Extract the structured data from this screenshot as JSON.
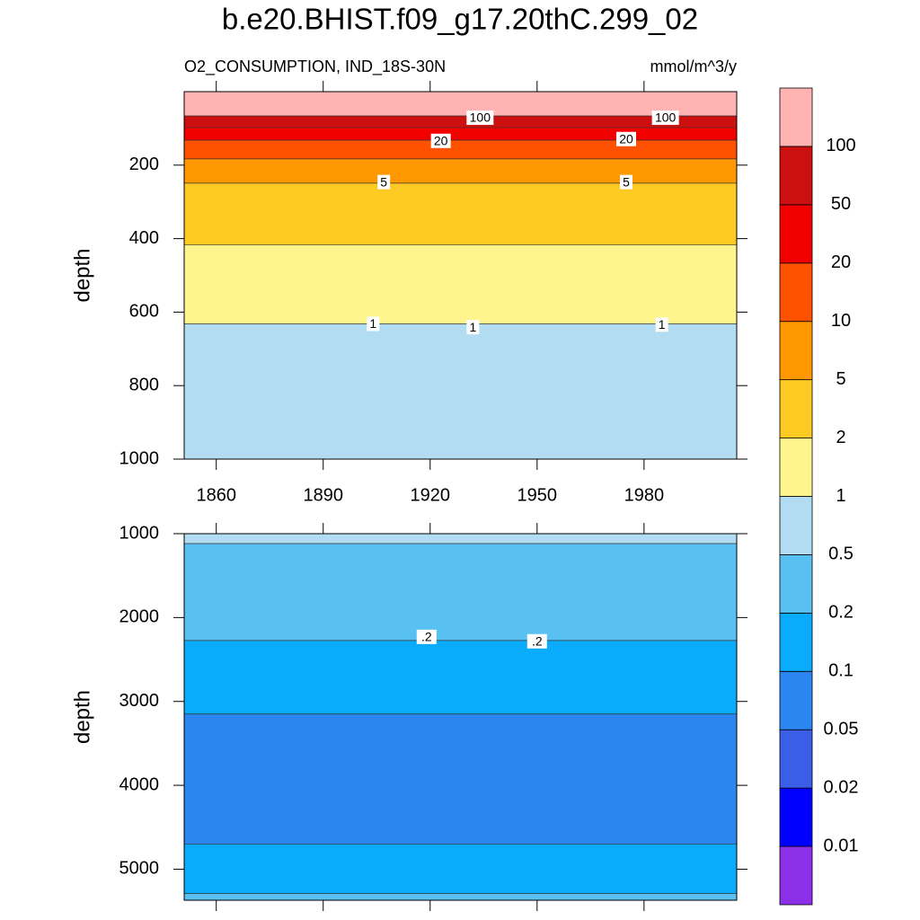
{
  "chart_data": {
    "type": "contour",
    "title": "b.e20.BHIST.f09_g17.20thC.299_02",
    "left_string": "O2_CONSUMPTION, IND_18S-30N",
    "right_string": "mmol/m^3/y",
    "xlim": [
      1851,
      2006
    ],
    "xticks": [
      1860,
      1890,
      1920,
      1950,
      1980
    ],
    "levels": [
      0.01,
      0.02,
      0.05,
      0.1,
      0.2,
      0.5,
      1,
      2,
      5,
      10,
      20,
      50,
      100
    ],
    "colors": [
      "#8b2fe8",
      "#0000ff",
      "#3b5ee6",
      "#2b86f2",
      "#0aabfa",
      "#58c1f2",
      "#b2dcf2",
      "#fff58f",
      "#fdc923",
      "#ff9700",
      "#ff5200",
      "#f20000",
      "#cc1010",
      "#ffb3b3"
    ],
    "panels": [
      {
        "y_label": "depth",
        "ylim": [
          0,
          1000
        ],
        "yticks": [
          200,
          400,
          600,
          800,
          1000
        ],
        "y_reversed": true,
        "show_x_labels": true,
        "bands": [
          {
            "from": 0,
            "to": 66,
            "min": 100
          },
          {
            "from": 66,
            "to": 98,
            "min": 50
          },
          {
            "from": 98,
            "to": 132,
            "min": 20
          },
          {
            "from": 132,
            "to": 183,
            "min": 10
          },
          {
            "from": 183,
            "to": 249,
            "min": 5
          },
          {
            "from": 249,
            "to": 417,
            "min": 2
          },
          {
            "from": 417,
            "to": 632,
            "min": 1
          },
          {
            "from": 632,
            "to": 1000,
            "min": 0.5
          }
        ],
        "contour_labels": [
          {
            "value": 100,
            "label": "100",
            "x": 1934,
            "depth": 71
          },
          {
            "value": 100,
            "label": "100",
            "x": 1986,
            "depth": 71
          },
          {
            "value": 20,
            "label": "20",
            "x": 1923,
            "depth": 134
          },
          {
            "value": 20,
            "label": "20",
            "x": 1975,
            "depth": 129
          },
          {
            "value": 5,
            "label": "5",
            "x": 1907,
            "depth": 246
          },
          {
            "value": 5,
            "label": "5",
            "x": 1975,
            "depth": 246
          },
          {
            "value": 1,
            "label": "1",
            "x": 1904,
            "depth": 632
          },
          {
            "value": 1,
            "label": "1",
            "x": 1932,
            "depth": 641
          },
          {
            "value": 1,
            "label": "1",
            "x": 1985,
            "depth": 634
          }
        ]
      },
      {
        "y_label": "depth",
        "ylim": [
          1000,
          5370
        ],
        "yticks": [
          1000,
          2000,
          3000,
          4000,
          5000
        ],
        "y_reversed": true,
        "show_x_labels": false,
        "bands": [
          {
            "from": 1000,
            "to": 1118,
            "min": 0.5
          },
          {
            "from": 1118,
            "to": 2273,
            "min": 0.2
          },
          {
            "from": 2273,
            "to": 3150,
            "min": 0.1
          },
          {
            "from": 3150,
            "to": 4700,
            "min": 0.05
          },
          {
            "from": 4700,
            "to": 5290,
            "min": 0.1
          },
          {
            "from": 5290,
            "to": 5370,
            "min": 0.2
          }
        ],
        "contour_labels": [
          {
            "value": 0.2,
            "label": ".2",
            "x": 1919,
            "depth": 2230
          },
          {
            "value": 0.2,
            "label": ".2",
            "x": 1950,
            "depth": 2283
          }
        ]
      }
    ]
  }
}
